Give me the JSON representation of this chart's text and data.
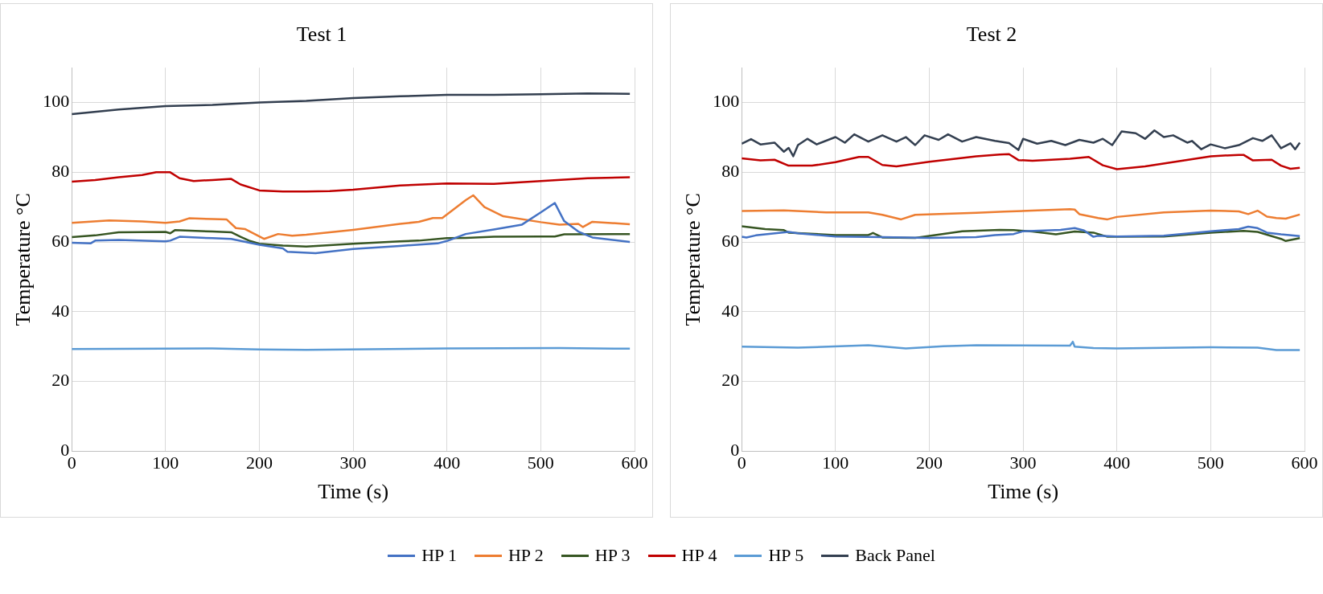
{
  "chart_data": [
    {
      "type": "line",
      "title": "Test 1",
      "xlabel": "Time (s)",
      "ylabel": "Temperature °C",
      "xlim": [
        0,
        600
      ],
      "xticks": [
        0,
        100,
        200,
        300,
        400,
        500,
        600
      ],
      "ylim": [
        0,
        110
      ],
      "yticks": [
        0,
        20,
        40,
        60,
        80,
        100
      ],
      "grid": true,
      "legend": "bottom",
      "marker": "none",
      "line_style": "solid",
      "series": [
        {
          "name": "HP 1",
          "color": "#4472c4",
          "x": [
            0,
            20,
            25,
            50,
            100,
            105,
            115,
            150,
            170,
            200,
            225,
            230,
            260,
            300,
            350,
            390,
            400,
            420,
            450,
            480,
            500,
            515,
            525,
            540,
            555,
            595
          ],
          "values": [
            59.8,
            59.6,
            60.4,
            60.6,
            60.2,
            60.4,
            61.5,
            61.1,
            60.9,
            59.2,
            58.2,
            57.2,
            56.8,
            58,
            58.9,
            59.6,
            60.3,
            62.3,
            63.6,
            65,
            68.5,
            71.2,
            66,
            63,
            61.3,
            60
          ]
        },
        {
          "name": "HP 2",
          "color": "#ed7d31",
          "x": [
            0,
            40,
            75,
            100,
            115,
            125,
            150,
            165,
            175,
            185,
            205,
            220,
            235,
            250,
            300,
            350,
            370,
            385,
            395,
            420,
            428,
            440,
            460,
            500,
            520,
            540,
            545,
            555,
            595
          ],
          "values": [
            65.5,
            66.2,
            65.9,
            65.5,
            65.9,
            66.8,
            66.6,
            66.5,
            64,
            63.7,
            60.9,
            62.3,
            61.8,
            62.1,
            63.5,
            65.2,
            65.8,
            66.9,
            66.9,
            72,
            73.4,
            70,
            67.4,
            65.7,
            65,
            65.2,
            64.3,
            65.8,
            65.1
          ]
        },
        {
          "name": "HP 3",
          "color": "#375623",
          "x": [
            0,
            25,
            50,
            100,
            105,
            110,
            150,
            170,
            180,
            190,
            200,
            225,
            250,
            300,
            350,
            370,
            400,
            420,
            450,
            500,
            515,
            525,
            595
          ],
          "values": [
            61.4,
            61.9,
            62.8,
            62.9,
            62.5,
            63.4,
            63,
            62.8,
            61.5,
            60.3,
            59.5,
            59,
            58.7,
            59.5,
            60.2,
            60.4,
            61.1,
            61.2,
            61.5,
            61.6,
            61.6,
            62.2,
            62.3
          ]
        },
        {
          "name": "HP 4",
          "color": "#c00000",
          "x": [
            0,
            25,
            50,
            75,
            90,
            105,
            115,
            130,
            150,
            170,
            180,
            200,
            225,
            250,
            275,
            300,
            350,
            400,
            450,
            500,
            550,
            595
          ],
          "values": [
            77.3,
            77.8,
            78.6,
            79.2,
            80,
            80,
            78.3,
            77.5,
            77.8,
            78.1,
            76.5,
            74.8,
            74.5,
            74.5,
            74.6,
            75,
            76.2,
            76.8,
            76.7,
            77.5,
            78.3,
            78.6
          ]
        },
        {
          "name": "HP 5",
          "color": "#5b9bd5",
          "x": [
            0,
            150,
            200,
            250,
            400,
            520,
            595
          ],
          "values": [
            29.3,
            29.5,
            29.2,
            29.1,
            29.5,
            29.6,
            29.4
          ]
        },
        {
          "name": "Back Panel",
          "color": "#333f50",
          "x": [
            0,
            50,
            100,
            150,
            200,
            250,
            300,
            350,
            400,
            450,
            500,
            550,
            595
          ],
          "values": [
            96.7,
            98,
            99,
            99.3,
            100,
            100.5,
            101.3,
            101.8,
            102.2,
            102.2,
            102.4,
            102.6,
            102.5
          ]
        }
      ]
    },
    {
      "type": "line",
      "title": "Test 2",
      "xlabel": "Time (s)",
      "ylabel": "Temperature °C",
      "xlim": [
        0,
        600
      ],
      "xticks": [
        0,
        100,
        200,
        300,
        400,
        500,
        600
      ],
      "ylim": [
        0,
        110
      ],
      "yticks": [
        0,
        20,
        40,
        60,
        80,
        100
      ],
      "grid": true,
      "legend": "bottom",
      "marker": "none",
      "line_style": "solid",
      "series": [
        {
          "name": "HP 1",
          "color": "#4472c4",
          "x": [
            0,
            5,
            15,
            50,
            60,
            100,
            150,
            200,
            250,
            270,
            290,
            300,
            340,
            355,
            365,
            375,
            380,
            400,
            450,
            500,
            530,
            540,
            550,
            560,
            575,
            595
          ],
          "values": [
            61.5,
            61.3,
            61.9,
            62.9,
            62.5,
            61.6,
            61.4,
            61.2,
            61.4,
            62,
            62.3,
            63.1,
            63.5,
            64,
            63.3,
            61.5,
            61.8,
            61.6,
            61.8,
            63.1,
            63.7,
            64.4,
            64,
            62.7,
            62.2,
            61.7
          ]
        },
        {
          "name": "HP 2",
          "color": "#ed7d31",
          "x": [
            0,
            45,
            90,
            135,
            150,
            170,
            185,
            250,
            280,
            350,
            355,
            360,
            380,
            390,
            400,
            450,
            500,
            530,
            540,
            550,
            560,
            570,
            580,
            595
          ],
          "values": [
            68.9,
            69.1,
            68.5,
            68.5,
            67.8,
            66.5,
            67.8,
            68.4,
            68.7,
            69.4,
            69.3,
            68,
            66.9,
            66.5,
            67.2,
            68.5,
            69,
            68.8,
            68,
            69,
            67.3,
            66.9,
            66.7,
            67.9
          ]
        },
        {
          "name": "HP 3",
          "color": "#375623",
          "x": [
            0,
            25,
            45,
            50,
            100,
            135,
            140,
            150,
            185,
            235,
            275,
            290,
            310,
            335,
            355,
            375,
            390,
            450,
            500,
            535,
            550,
            575,
            580,
            595
          ],
          "values": [
            64.5,
            63.7,
            63.4,
            62.7,
            62,
            62,
            62.6,
            61.3,
            61.2,
            63.1,
            63.5,
            63.4,
            63,
            62.2,
            63,
            62.7,
            61.5,
            61.6,
            62.7,
            63.2,
            62.9,
            60.9,
            60.3,
            61.1
          ]
        },
        {
          "name": "HP 4",
          "color": "#c00000",
          "x": [
            0,
            20,
            35,
            50,
            75,
            100,
            125,
            135,
            150,
            165,
            200,
            250,
            275,
            285,
            295,
            310,
            330,
            350,
            370,
            385,
            400,
            430,
            500,
            530,
            535,
            545,
            565,
            575,
            585,
            595
          ],
          "values": [
            84,
            83.4,
            83.6,
            81.9,
            81.9,
            82.9,
            84.4,
            84.4,
            82.1,
            81.7,
            83,
            84.6,
            85.1,
            85.2,
            83.5,
            83.3,
            83.6,
            83.9,
            84.4,
            82,
            80.9,
            81.7,
            84.6,
            85,
            85,
            83.4,
            83.6,
            81.9,
            81,
            81.3
          ]
        },
        {
          "name": "HP 5",
          "color": "#5b9bd5",
          "x": [
            0,
            60,
            135,
            175,
            215,
            250,
            350,
            353,
            355,
            375,
            400,
            500,
            550,
            570,
            595
          ],
          "values": [
            30,
            29.7,
            30.4,
            29.5,
            30.1,
            30.4,
            30.3,
            31.4,
            30,
            29.6,
            29.5,
            29.8,
            29.7,
            29,
            29
          ]
        },
        {
          "name": "Back Panel",
          "color": "#333f50",
          "x": [
            0,
            10,
            20,
            35,
            45,
            50,
            55,
            60,
            70,
            80,
            100,
            110,
            120,
            135,
            150,
            165,
            175,
            185,
            195,
            210,
            220,
            235,
            250,
            270,
            285,
            295,
            300,
            315,
            330,
            345,
            360,
            375,
            385,
            395,
            405,
            420,
            430,
            440,
            450,
            460,
            475,
            480,
            490,
            500,
            515,
            530,
            545,
            555,
            565,
            575,
            585,
            590,
            595
          ],
          "values": [
            88.2,
            89.5,
            88,
            88.5,
            85.9,
            87,
            84.6,
            87.8,
            89.6,
            88,
            90.1,
            88.5,
            90.9,
            88.8,
            90.6,
            88.8,
            90.1,
            87.8,
            90.6,
            89.3,
            90.9,
            88.8,
            90.1,
            89,
            88.4,
            86.4,
            89.6,
            88.2,
            89,
            87.8,
            89.3,
            88.5,
            89.6,
            87.8,
            91.7,
            91.2,
            89.6,
            92,
            90.1,
            90.6,
            88.5,
            89,
            86.6,
            88,
            86.9,
            87.8,
            89.8,
            89,
            90.6,
            86.9,
            88.3,
            86.6,
            88.5
          ]
        }
      ]
    }
  ]
}
